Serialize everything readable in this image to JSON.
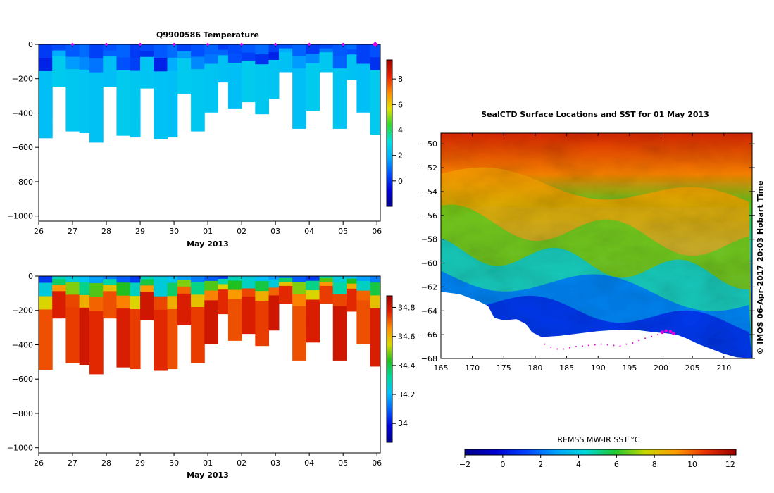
{
  "colors": {
    "frame": "#000000",
    "marker": "#e000e0",
    "temp_colormap": [
      "#00008a",
      "#0000d8",
      "#0050ff",
      "#00b0ff",
      "#00e0e0",
      "#30d830",
      "#e0e000",
      "#ff8a00",
      "#e82000",
      "#9e0000"
    ],
    "sal_colormap": [
      "#00008a",
      "#0000d8",
      "#0060ff",
      "#00c0ff",
      "#00d8a0",
      "#20c020",
      "#d8d800",
      "#ff9000",
      "#e02000",
      "#a00000"
    ],
    "sst_colormap": [
      "#00008a",
      "#0000d0",
      "#0040ff",
      "#00a0ff",
      "#00d8d8",
      "#20c830",
      "#c8d800",
      "#ff9c00",
      "#e83000",
      "#9a0000"
    ]
  },
  "chart_data": [
    {
      "id": "temperature-section",
      "type": "heatmap",
      "title": "Q9900586  Temperature",
      "xlabel": "May 2013",
      "ylabel": "",
      "x_ticks": [
        "26",
        "27",
        "28",
        "29",
        "30",
        "01",
        "02",
        "03",
        "04",
        "05",
        "06"
      ],
      "y_ticks": [
        "0",
        "−200",
        "−400",
        "−600",
        "−800",
        "−1000"
      ],
      "y_tick_values": [
        0,
        -200,
        -400,
        -600,
        -800,
        -1000
      ],
      "xlim": [
        26,
        36.1
      ],
      "ylim": [
        -1030,
        0
      ],
      "colorbar": {
        "ticks": [
          "8",
          "6",
          "4",
          "2",
          "0"
        ],
        "tick_values": [
          8,
          6,
          4,
          2,
          0
        ],
        "range": [
          -2,
          9.5
        ]
      },
      "profile_days": [
        26.0,
        26.4,
        26.8,
        27.2,
        27.5,
        27.9,
        28.3,
        28.7,
        29.0,
        29.4,
        29.8,
        30.1,
        30.5,
        30.9,
        31.3,
        31.6,
        32.0,
        32.4,
        32.8,
        33.1,
        33.5,
        33.9,
        34.3,
        34.7,
        35.1,
        35.4,
        35.8
      ],
      "profile_max_depth": [
        -545,
        -245,
        -505,
        -515,
        -570,
        -245,
        -530,
        -540,
        -255,
        -550,
        -540,
        -285,
        -505,
        -395,
        -220,
        -375,
        -335,
        -405,
        -315,
        -160,
        -490,
        -385,
        -160,
        -490,
        -205,
        -395,
        -525
      ],
      "profile_values": {
        "surface": 0.5,
        "upper": 1.0,
        "deep": 2.2
      },
      "marker_days": [
        27.0,
        28.0,
        29.0,
        30.0,
        31.0,
        32.0,
        33.0,
        34.0,
        35.0,
        35.95
      ]
    },
    {
      "id": "salinity-section",
      "type": "heatmap",
      "title": "",
      "xlabel": "May 2013",
      "ylabel": "",
      "x_ticks": [
        "26",
        "27",
        "28",
        "29",
        "30",
        "01",
        "02",
        "03",
        "04",
        "05",
        "06"
      ],
      "y_ticks": [
        "0",
        "−200",
        "−400",
        "−600",
        "−800",
        "−1000"
      ],
      "y_tick_values": [
        0,
        -200,
        -400,
        -600,
        -800,
        -1000
      ],
      "xlim": [
        26,
        36.1
      ],
      "ylim": [
        -1030,
        0
      ],
      "colorbar": {
        "ticks": [
          "34.8",
          "34.6",
          "34.4",
          "34.2",
          "34"
        ],
        "tick_values": [
          34.8,
          34.6,
          34.4,
          34.2,
          34.0
        ],
        "range": [
          33.87,
          34.88
        ]
      },
      "profile_values": {
        "surface": 34.05,
        "upper": 34.25,
        "deep": 34.72
      }
    },
    {
      "id": "sst-map",
      "type": "heatmap",
      "title": "SealCTD Surface Locations and SST for 01 May 2013",
      "x_ticks": [
        "165",
        "170",
        "175",
        "180",
        "185",
        "190",
        "195",
        "200",
        "205",
        "210"
      ],
      "x_tick_values": [
        165,
        170,
        175,
        180,
        185,
        190,
        195,
        200,
        205,
        210
      ],
      "y_ticks": [
        "−50",
        "−52",
        "−54",
        "−56",
        "−58",
        "−60",
        "−62",
        "−64",
        "−66",
        "−68"
      ],
      "y_tick_values": [
        -50,
        -52,
        -54,
        -56,
        -58,
        -60,
        -62,
        -64,
        -66,
        -68
      ],
      "xlim": [
        165,
        214.5
      ],
      "ylim": [
        -68,
        -49.1
      ],
      "colorbar": {
        "label": "REMSS MW-IR SST °C",
        "ticks": [
          "−2",
          "0",
          "2",
          "4",
          "6",
          "8",
          "10",
          "12"
        ],
        "tick_values": [
          -2,
          0,
          2,
          4,
          6,
          8,
          10,
          12
        ],
        "range": [
          -2,
          12.3
        ]
      },
      "side_label": "© IMOS 06-Apr-2017 20:03 Hobart Time",
      "track": {
        "lon": [
          181.5,
          182.5,
          183.5,
          184.5,
          185.5,
          186.5,
          187.5,
          188.5,
          189.5,
          190.5,
          191.5,
          192.5,
          193.5,
          194.5,
          195.5,
          196.5,
          197.5,
          198.5,
          199.5,
          200.2,
          200.8,
          201.5,
          202.0
        ],
        "lat": [
          -66.8,
          -67.05,
          -67.2,
          -67.2,
          -67.1,
          -67.0,
          -66.95,
          -66.9,
          -66.85,
          -66.8,
          -66.85,
          -66.9,
          -66.95,
          -66.8,
          -66.7,
          -66.5,
          -66.3,
          -66.15,
          -66.0,
          -65.8,
          -65.7,
          -65.75,
          -65.9
        ]
      }
    }
  ]
}
